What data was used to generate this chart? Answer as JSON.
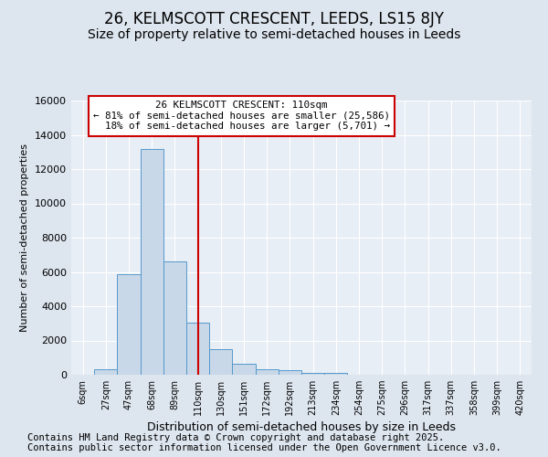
{
  "title": "26, KELMSCOTT CRESCENT, LEEDS, LS15 8JY",
  "subtitle": "Size of property relative to semi-detached houses in Leeds",
  "xlabel": "Distribution of semi-detached houses by size in Leeds",
  "ylabel": "Number of semi-detached properties",
  "categories": [
    "6sqm",
    "27sqm",
    "47sqm",
    "68sqm",
    "89sqm",
    "110sqm",
    "130sqm",
    "151sqm",
    "172sqm",
    "192sqm",
    "213sqm",
    "234sqm",
    "254sqm",
    "275sqm",
    "296sqm",
    "317sqm",
    "337sqm",
    "358sqm",
    "399sqm",
    "420sqm"
  ],
  "values": [
    0,
    310,
    5850,
    13200,
    6600,
    3050,
    1500,
    620,
    310,
    260,
    130,
    130,
    0,
    0,
    0,
    0,
    0,
    0,
    0,
    0
  ],
  "bar_color": "#c8d8e8",
  "bar_edge_color": "#5599cc",
  "annotation_text": "26 KELMSCOTT CRESCENT: 110sqm\n← 81% of semi-detached houses are smaller (25,586)\n  18% of semi-detached houses are larger (5,701) →",
  "annotation_box_color": "#ffffff",
  "annotation_box_edge_color": "#cc0000",
  "vline_color": "#cc0000",
  "ylim": [
    0,
    16000
  ],
  "yticks": [
    0,
    2000,
    4000,
    6000,
    8000,
    10000,
    12000,
    14000,
    16000
  ],
  "background_color": "#dde5ee",
  "plot_background_color": "#e8eef5",
  "grid_color": "#ffffff",
  "footnote1": "Contains HM Land Registry data © Crown copyright and database right 2025.",
  "footnote2": "Contains public sector information licensed under the Open Government Licence v3.0.",
  "title_fontsize": 12,
  "subtitle_fontsize": 10,
  "footnote_fontsize": 7.5
}
